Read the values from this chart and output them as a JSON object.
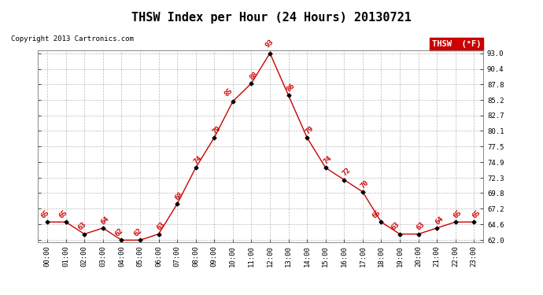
{
  "title": "THSW Index per Hour (24 Hours) 20130721",
  "copyright": "Copyright 2013 Cartronics.com",
  "legend_label": "THSW  (°F)",
  "hours": [
    0,
    1,
    2,
    3,
    4,
    5,
    6,
    7,
    8,
    9,
    10,
    11,
    12,
    13,
    14,
    15,
    16,
    17,
    18,
    19,
    20,
    21,
    22,
    23
  ],
  "values": [
    65,
    65,
    63,
    64,
    62,
    62,
    63,
    68,
    74,
    79,
    85,
    88,
    93,
    86,
    79,
    74,
    72,
    70,
    65,
    63,
    63,
    64,
    65,
    65
  ],
  "line_color": "#cc0000",
  "marker_color": "#000000",
  "label_color": "#cc0000",
  "background_color": "#ffffff",
  "grid_color": "#bbbbbb",
  "ylim_min": 62.0,
  "ylim_max": 93.0,
  "yticks": [
    62.0,
    64.6,
    67.2,
    69.8,
    72.3,
    74.9,
    77.5,
    80.1,
    82.7,
    85.2,
    87.8,
    90.4,
    93.0
  ],
  "title_fontsize": 11,
  "label_fontsize": 6.5,
  "tick_fontsize": 6.5,
  "copyright_fontsize": 6.5,
  "legend_bg": "#cc0000",
  "legend_text_color": "#ffffff"
}
